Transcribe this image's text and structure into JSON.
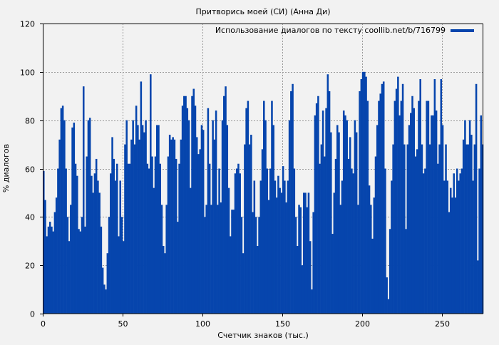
{
  "chart_data": {
    "type": "bar",
    "title": "Притворись моей (СИ) (Анна Ди)",
    "xlabel": "Счетчик знаков (тыс.)",
    "ylabel": "% диалогов",
    "xlim": [
      0,
      276
    ],
    "ylim": [
      0,
      120
    ],
    "xticks": [
      0,
      50,
      100,
      150,
      200,
      250
    ],
    "yticks": [
      0,
      20,
      40,
      60,
      80,
      100,
      120
    ],
    "grid": true,
    "legend_position": "top-right",
    "series": [
      {
        "name": "Использование диалогов по тексту coollib.net/b/716799",
        "color": "#0645ad",
        "x_start": 0,
        "x_step": 1,
        "values": [
          59,
          47,
          32,
          36,
          38,
          36,
          34,
          42,
          48,
          60,
          72,
          85,
          86,
          80,
          60,
          40,
          30,
          45,
          77,
          79,
          62,
          57,
          35,
          34,
          40,
          94,
          36,
          65,
          80,
          81,
          57,
          50,
          58,
          64,
          55,
          50,
          36,
          19,
          12,
          10,
          25,
          40,
          58,
          73,
          64,
          55,
          62,
          32,
          55,
          40,
          30,
          70,
          80,
          62,
          62,
          72,
          80,
          70,
          86,
          78,
          72,
          96,
          78,
          75,
          80,
          62,
          60,
          99,
          65,
          52,
          65,
          78,
          78,
          62,
          45,
          28,
          25,
          45,
          65,
          74,
          72,
          73,
          72,
          64,
          38,
          62,
          72,
          86,
          90,
          90,
          85,
          80,
          52,
          90,
          93,
          86,
          73,
          66,
          68,
          78,
          76,
          40,
          45,
          85,
          62,
          45,
          80,
          72,
          84,
          45,
          60,
          46,
          80,
          90,
          94,
          78,
          52,
          32,
          43,
          43,
          58,
          60,
          62,
          58,
          40,
          25,
          70,
          85,
          88,
          70,
          74,
          42,
          55,
          40,
          28,
          40,
          55,
          68,
          88,
          80,
          60,
          47,
          60,
          88,
          78,
          55,
          48,
          57,
          52,
          50,
          61,
          55,
          46,
          55,
          80,
          92,
          95,
          60,
          40,
          28,
          45,
          44,
          20,
          50,
          50,
          44,
          50,
          30,
          10,
          42,
          82,
          87,
          90,
          62,
          70,
          84,
          65,
          85,
          99,
          92,
          75,
          33,
          50,
          64,
          78,
          75,
          45,
          55,
          84,
          82,
          80,
          64,
          73,
          60,
          58,
          80,
          75,
          45,
          92,
          97,
          100,
          100,
          98,
          88,
          53,
          45,
          31,
          48,
          65,
          78,
          88,
          91,
          95,
          96,
          60,
          15,
          6,
          35,
          55,
          70,
          88,
          93,
          98,
          82,
          88,
          95,
          70,
          35,
          70,
          78,
          83,
          90,
          85,
          65,
          68,
          88,
          97,
          70,
          58,
          60,
          88,
          88,
          70,
          82,
          82,
          97,
          84,
          62,
          70,
          97,
          78,
          55,
          70,
          55,
          42,
          52,
          48,
          58,
          48,
          60,
          55,
          58,
          60,
          72,
          80,
          70,
          70,
          80,
          74,
          55,
          70,
          95,
          22,
          60,
          82,
          70
        ]
      }
    ]
  }
}
